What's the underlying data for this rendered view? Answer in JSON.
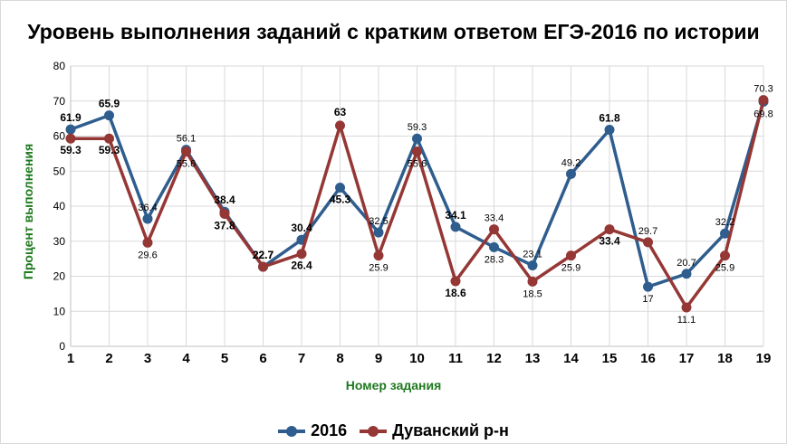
{
  "title": "Уровень выполнения заданий с кратким ответом ЕГЭ-2016 по истории",
  "chart_data": {
    "type": "line",
    "title": "Уровень выполнения заданий с кратким ответом ЕГЭ-2016 по истории",
    "xlabel": "Номер задания",
    "ylabel": "Процент выполнения",
    "x": [
      "1",
      "2",
      "3",
      "4",
      "5",
      "6",
      "7",
      "8",
      "9",
      "10",
      "11",
      "12",
      "13",
      "14",
      "15",
      "16",
      "17",
      "18",
      "19"
    ],
    "ylim": [
      0,
      80
    ],
    "yticks": [
      0,
      10,
      20,
      30,
      40,
      50,
      60,
      70,
      80
    ],
    "grid": true,
    "legend": "bottom",
    "series": [
      {
        "name": "2016",
        "color": "#2e5d8e",
        "values": [
          61.9,
          65.9,
          36.4,
          56.1,
          38.4,
          22.7,
          30.4,
          45.3,
          32.5,
          59.3,
          34.1,
          28.3,
          23.1,
          49.2,
          61.8,
          17,
          20.7,
          32.2,
          69.8
        ],
        "labels": [
          "61.9",
          "65.9",
          "36.4",
          "56.1",
          "38.4",
          "22.7",
          "30.4",
          "45.3",
          "32.5",
          "59.3",
          "34.1",
          "28.3",
          "23.1",
          "49.2",
          "61.8",
          "17",
          "20.7",
          "32.2",
          "69.8"
        ]
      },
      {
        "name": "Дуванский р-н",
        "color": "#953735",
        "values": [
          59.3,
          59.3,
          29.6,
          55.6,
          37.8,
          22.7,
          26.4,
          63,
          25.9,
          55.6,
          18.6,
          33.4,
          18.5,
          25.9,
          33.4,
          29.7,
          11.1,
          25.9,
          70.3
        ],
        "labels": [
          "59.3",
          "59.3",
          "29.6",
          "55.6",
          "37.8",
          "22.7",
          "26.4",
          "63",
          "25.9",
          "55.6",
          "18.6",
          "33.4",
          "18.5",
          "25.9",
          "33.4",
          "29.7",
          "11.1",
          "25.9",
          "70.3"
        ]
      }
    ]
  }
}
